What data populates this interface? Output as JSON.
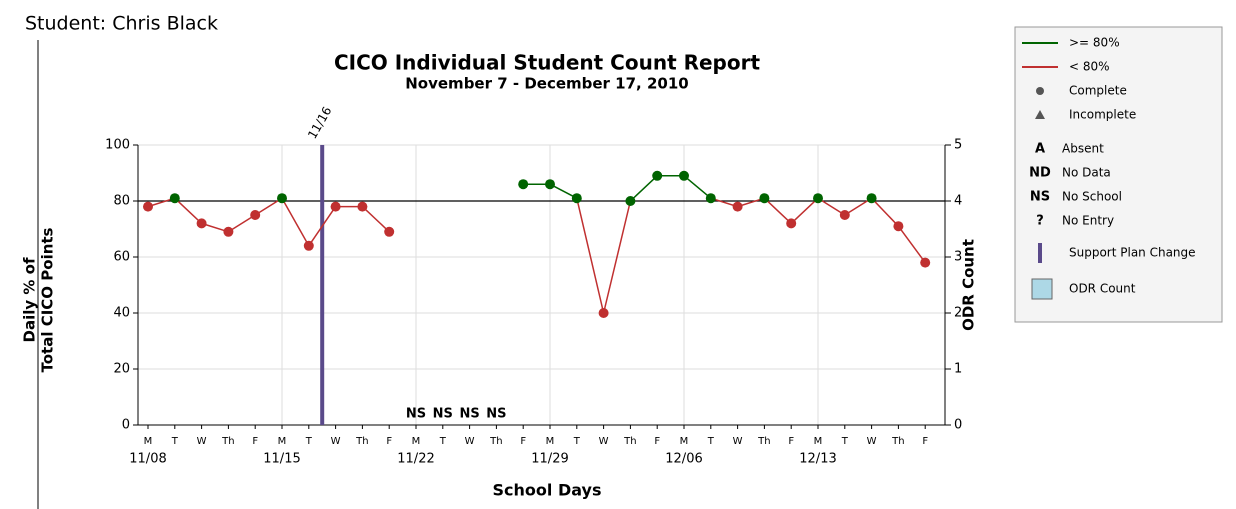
{
  "chart_data": {
    "type": "line",
    "student": "Student: Chris Black",
    "title": "CICO Individual Student Count Report",
    "subtitle": "November 7 - December 17, 2010",
    "y_label": [
      "Daily % of",
      "Total CICO Points"
    ],
    "y2_label": "ODR Count",
    "x_label": "School Days",
    "categories": [
      "M",
      "T",
      "W",
      "Th",
      "F",
      "M",
      "T",
      "W",
      "Th",
      "F",
      "M",
      "T",
      "W",
      "Th",
      "F",
      "M",
      "T",
      "W",
      "Th",
      "F",
      "M",
      "T",
      "W",
      "Th",
      "F",
      "M",
      "T",
      "W",
      "Th",
      "F"
    ],
    "dates": [
      "11/08",
      null,
      null,
      null,
      null,
      "11/15",
      null,
      null,
      null,
      null,
      "11/22",
      null,
      null,
      null,
      null,
      "11/29",
      null,
      null,
      null,
      null,
      "12/06",
      null,
      null,
      null,
      null,
      "12/13",
      null,
      null,
      null,
      null
    ],
    "day_marks": [
      null,
      null,
      null,
      null,
      null,
      null,
      null,
      null,
      null,
      null,
      "NS",
      "NS",
      "NS",
      "NS",
      null,
      null,
      null,
      null,
      null,
      null,
      null,
      null,
      null,
      null,
      null,
      null,
      null,
      null,
      null,
      null
    ],
    "series": [
      {
        "name": "Daily %",
        "values": [
          78,
          81,
          72,
          69,
          75,
          81,
          64,
          78,
          78,
          69,
          null,
          null,
          null,
          null,
          86,
          86,
          81,
          40,
          80,
          89,
          89,
          81,
          78,
          81,
          72,
          81,
          75,
          81,
          71,
          58
        ],
        "point_colors": [
          "#c03030",
          "#006400",
          "#c03030",
          "#c03030",
          "#c03030",
          "#006400",
          "#c03030",
          "#c03030",
          "#c03030",
          "#c03030",
          null,
          null,
          null,
          null,
          "#006400",
          "#006400",
          "#006400",
          "#c03030",
          "#006400",
          "#006400",
          "#006400",
          "#006400",
          "#c03030",
          "#006400",
          "#c03030",
          "#006400",
          "#c03030",
          "#006400",
          "#c03030",
          "#c03030"
        ]
      }
    ],
    "reference_line": 80,
    "support_plan_change": {
      "label": "11/16",
      "category": 6,
      "color": "#5a4a8a"
    },
    "ylim": [
      0,
      100
    ],
    "yticks": [
      0,
      20,
      40,
      60,
      80,
      100
    ],
    "y2lim": [
      0,
      5
    ],
    "y2ticks": [
      0,
      1,
      2,
      3,
      4,
      5
    ],
    "grid": true,
    "legend": [
      {
        "kind": "line",
        "label": ">= 80%",
        "color": "#006400"
      },
      {
        "kind": "line",
        "label": "< 80%",
        "color": "#c03030"
      },
      {
        "kind": "circle",
        "label": "Complete",
        "color": "#555555"
      },
      {
        "kind": "triangle",
        "label": "Incomplete",
        "color": "#555555"
      },
      {
        "kind": "text",
        "symbol": "A",
        "label": "Absent"
      },
      {
        "kind": "text",
        "symbol": "ND",
        "label": "No Data"
      },
      {
        "kind": "text",
        "symbol": "NS",
        "label": "No School"
      },
      {
        "kind": "text",
        "symbol": "?",
        "label": "No Entry"
      },
      {
        "kind": "bar",
        "label": "Support Plan Change",
        "color": "#5a4a8a"
      },
      {
        "kind": "box",
        "label": "ODR Count",
        "color": "#add8e6"
      }
    ]
  }
}
